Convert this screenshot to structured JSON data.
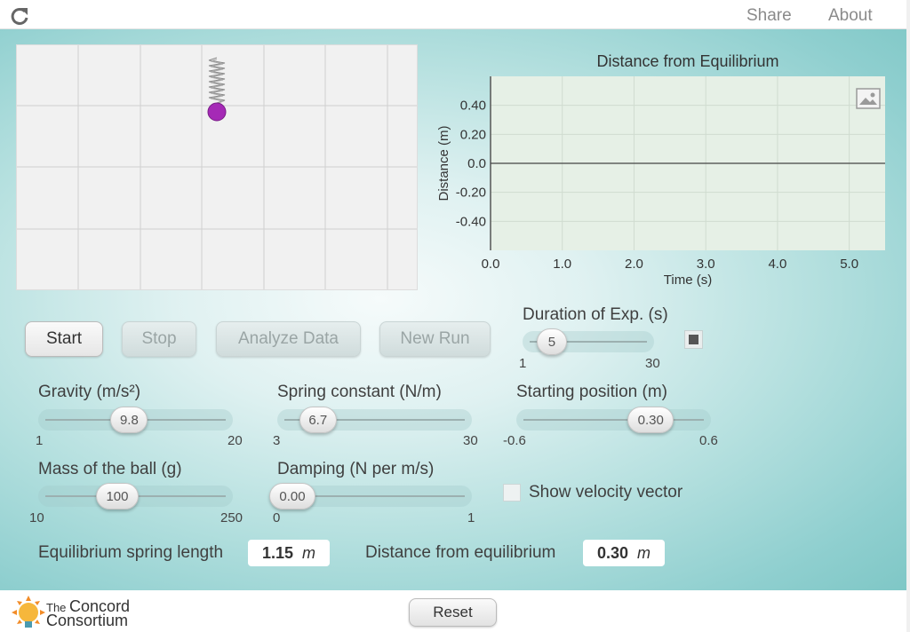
{
  "topbar": {
    "share": "Share",
    "about": "About",
    "reload_icon": "reload-icon"
  },
  "graph": {
    "title": "Distance from Equilibrium",
    "ylabel": "Distance (m)",
    "xlabel": "Time (s)",
    "image_icon": "image-icon"
  },
  "chart_data": {
    "type": "line",
    "title": "Distance from Equilibrium",
    "xlabel": "Time (s)",
    "ylabel": "Distance (m)",
    "xlim": [
      0,
      5.5
    ],
    "ylim": [
      -0.6,
      0.6
    ],
    "x_ticks": [
      "0.0",
      "1.0",
      "2.0",
      "3.0",
      "4.0",
      "5.0"
    ],
    "y_ticks": [
      "0.40",
      "0.20",
      "0.0",
      "-0.20",
      "-0.40"
    ],
    "series": [
      {
        "x": [
          0,
          5.5
        ],
        "y": [
          0,
          0
        ]
      }
    ],
    "grid": true
  },
  "controls": {
    "start": "Start",
    "stop": "Stop",
    "analyze": "Analyze Data",
    "new_run": "New Run"
  },
  "sliders": {
    "duration": {
      "label": "Duration of Exp. (s)",
      "value": "5",
      "min": "1",
      "max": "30",
      "fraction": 0.14
    },
    "gravity": {
      "label": "Gravity (m/s²)",
      "value": "9.8",
      "min": "1",
      "max": "20",
      "fraction": 0.46
    },
    "spring": {
      "label": "Spring constant (N/m)",
      "value": "6.7",
      "min": "3",
      "max": "30",
      "fraction": 0.14
    },
    "start_pos": {
      "label": "Starting position (m)",
      "value": "0.30",
      "min": "-0.6",
      "max": "0.6",
      "fraction": 0.75
    },
    "mass": {
      "label": "Mass of the ball (g)",
      "value": "100",
      "min": "10",
      "max": "250",
      "fraction": 0.38
    },
    "damping": {
      "label": "Damping (N per m/s)",
      "value": "0.00",
      "min": "0",
      "max": "1",
      "fraction": 0.0
    }
  },
  "velocity": {
    "label": "Show velocity vector",
    "checked": false
  },
  "readouts": {
    "eq_label": "Equilibrium spring length",
    "eq_value": "1.15",
    "eq_unit": "m",
    "dist_label": "Distance from equilibrium",
    "dist_value": "0.30",
    "dist_unit": "m"
  },
  "footer": {
    "logo_small": "The",
    "logo_line1": "Concord",
    "logo_line2": "Consortium",
    "reset": "Reset"
  },
  "colors": {
    "ball": "#a52ab6",
    "plot_bg": "#e6f0e6",
    "main_bg": "#9dd6d5"
  }
}
